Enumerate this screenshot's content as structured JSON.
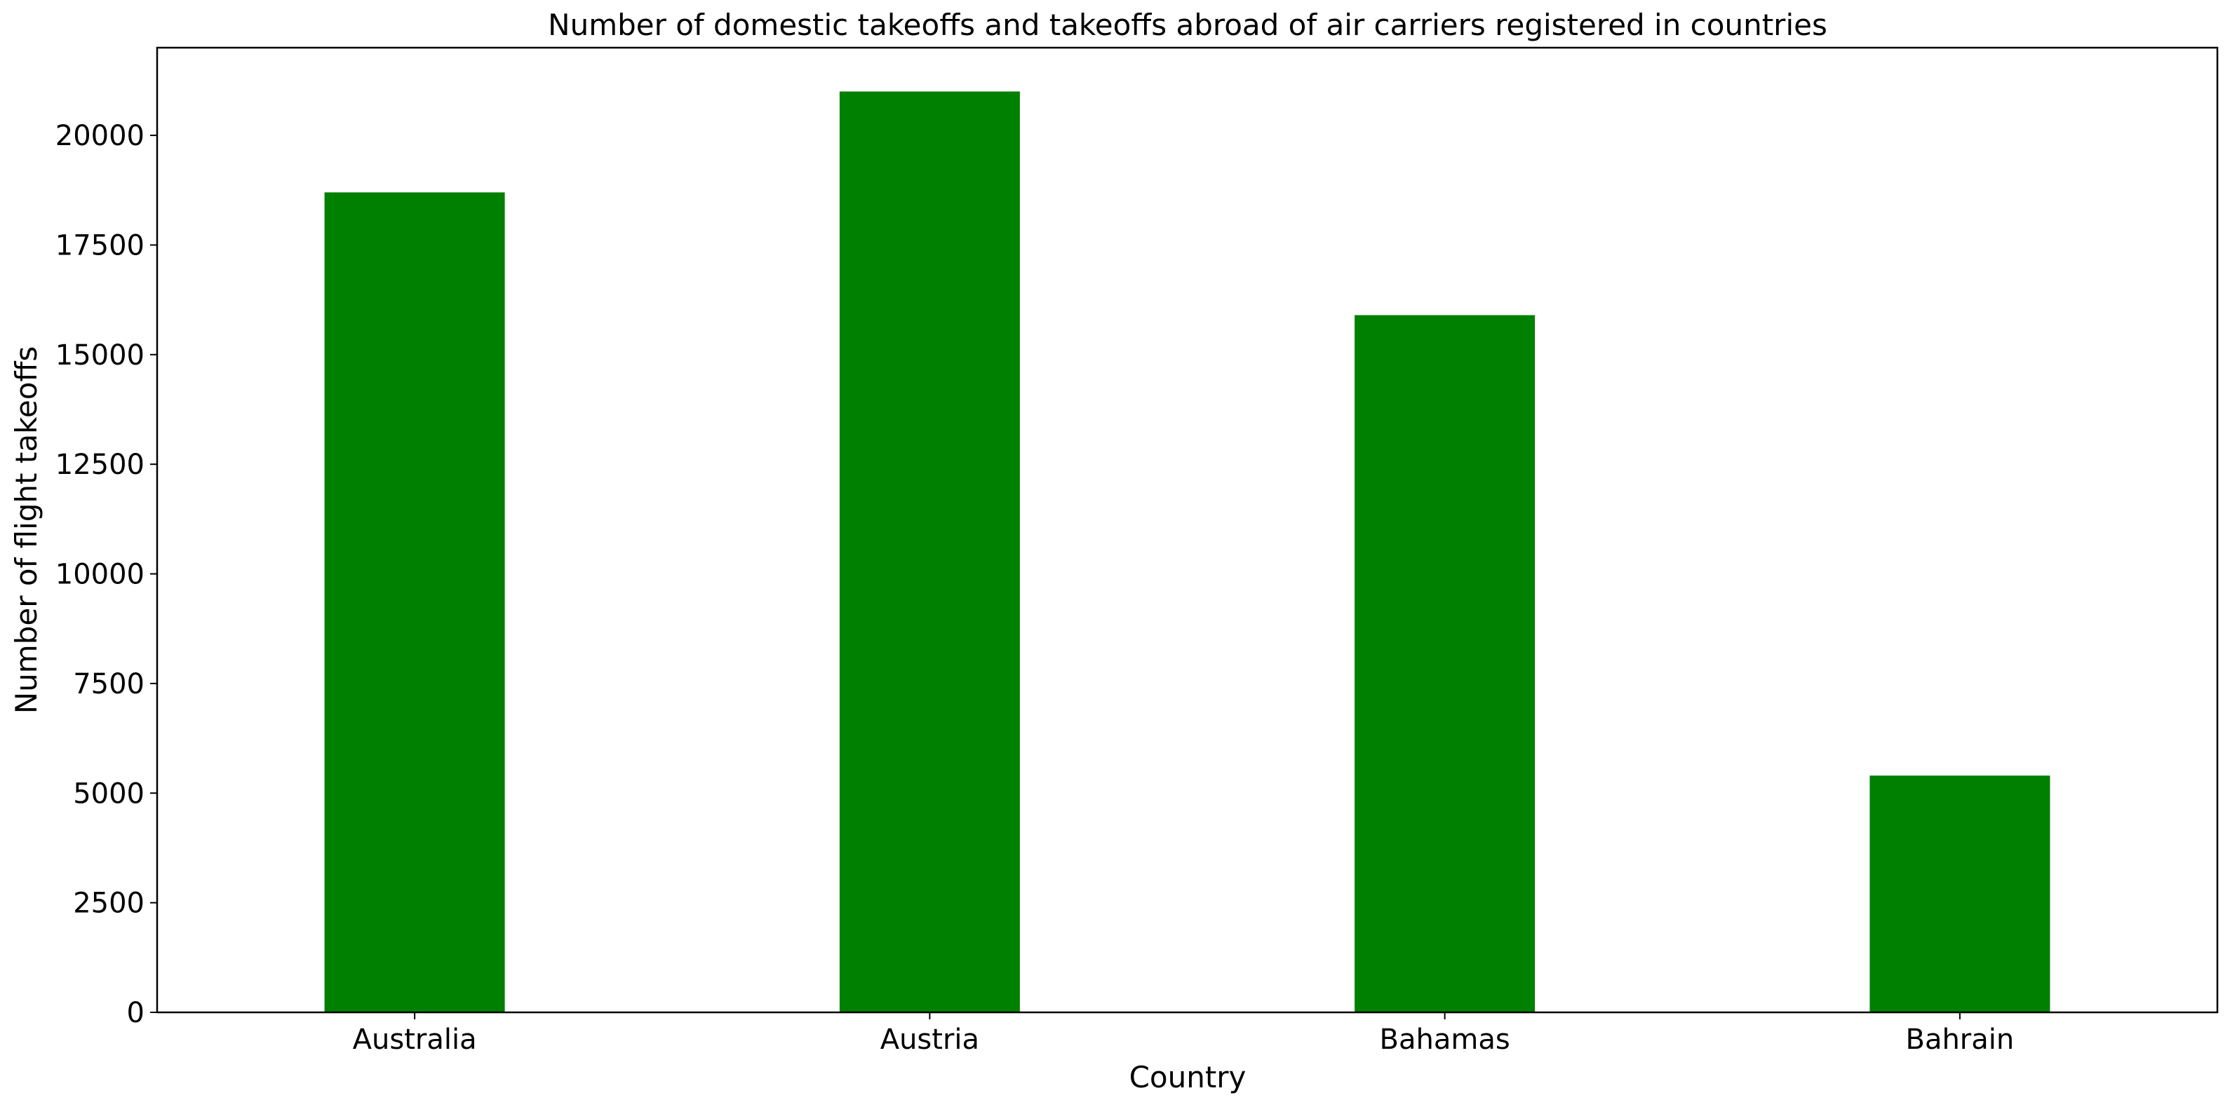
{
  "chart_data": {
    "type": "bar",
    "title": "Number of domestic takeoffs and takeoffs abroad of air carriers registered in countries",
    "xlabel": "Country",
    "ylabel": "Number of flight takeoffs",
    "categories": [
      "Australia",
      "Austria",
      "Bahamas",
      "Bahrain"
    ],
    "values": [
      18700,
      21000,
      15900,
      5400
    ],
    "ylim": [
      0,
      22000
    ],
    "yticks": [
      0,
      2500,
      5000,
      7500,
      10000,
      12500,
      15000,
      17500,
      20000
    ],
    "bar_color": "#008000",
    "grid": false,
    "legend": "none"
  }
}
